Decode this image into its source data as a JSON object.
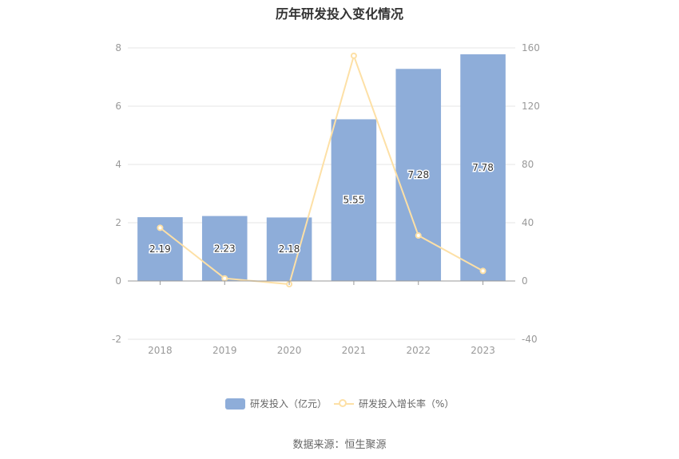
{
  "title": "历年研发投入变化情况",
  "source": "数据来源：恒生聚源",
  "chart_data": {
    "type": "bar",
    "categories": [
      "2018",
      "2019",
      "2020",
      "2021",
      "2022",
      "2023"
    ],
    "series": [
      {
        "name": "研发投入（亿元）",
        "type": "bar",
        "axis": "left",
        "values": [
          2.19,
          2.23,
          2.18,
          5.55,
          7.28,
          7.78
        ],
        "labels": [
          "2.19",
          "2.23",
          "2.18",
          "5.55",
          "7.28",
          "7.78"
        ],
        "color": "#8eadd9"
      },
      {
        "name": "研发投入增长率（%）",
        "type": "line",
        "axis": "right",
        "values": [
          36.5,
          1.8,
          -2.2,
          154.6,
          31.2,
          6.9
        ],
        "color": "#fde0a6"
      }
    ],
    "y_left": {
      "min": -2,
      "max": 8,
      "ticks": [
        -2,
        0,
        2,
        4,
        6,
        8
      ]
    },
    "y_right": {
      "min": -40,
      "max": 160,
      "ticks": [
        -40,
        0,
        40,
        80,
        120,
        160
      ]
    },
    "grid": true,
    "legend_position": "bottom"
  }
}
